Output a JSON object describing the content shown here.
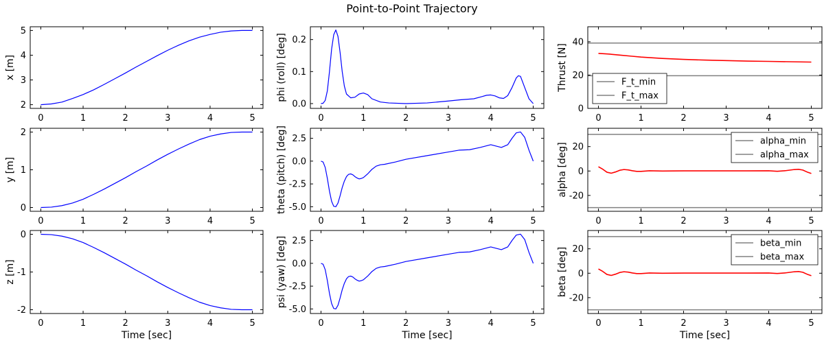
{
  "figure": {
    "title": "Point-to-Point Trajectory"
  },
  "chart_data": [
    {
      "type": "line",
      "panel": "x",
      "ylabel": "x [m]",
      "xlabel": "",
      "xlim": [
        -0.25,
        5.25
      ],
      "ylim": [
        1.85,
        5.15
      ],
      "xticks": [
        0,
        1,
        2,
        3,
        4,
        5
      ],
      "yticks": [
        2,
        3,
        4,
        5
      ],
      "xticklabels": [
        "0",
        "1",
        "2",
        "3",
        "4",
        "5"
      ],
      "yticklabels": [
        "2",
        "3",
        "4",
        "5"
      ],
      "series": [
        {
          "color": "#0000ff",
          "x": [
            0,
            0.25,
            0.5,
            0.75,
            1,
            1.25,
            1.5,
            1.75,
            2,
            2.25,
            2.5,
            2.75,
            3,
            3.25,
            3.5,
            3.75,
            4,
            4.25,
            4.5,
            4.75,
            5
          ],
          "y": [
            2.0,
            2.03,
            2.105,
            2.25,
            2.41,
            2.6,
            2.82,
            3.05,
            3.28,
            3.52,
            3.75,
            3.98,
            4.2,
            4.4,
            4.58,
            4.73,
            4.84,
            4.93,
            4.98,
            5.0,
            5.0
          ]
        }
      ]
    },
    {
      "type": "line",
      "panel": "y",
      "ylabel": "y [m]",
      "xlabel": "",
      "xlim": [
        -0.25,
        5.25
      ],
      "ylim": [
        -0.1,
        2.1
      ],
      "xticks": [
        0,
        1,
        2,
        3,
        4,
        5
      ],
      "yticks": [
        0,
        1,
        2
      ],
      "xticklabels": [
        "0",
        "1",
        "2",
        "3",
        "4",
        "5"
      ],
      "yticklabels": [
        "0",
        "1",
        "2"
      ],
      "series": [
        {
          "color": "#0000ff",
          "x": [
            0,
            0.25,
            0.5,
            0.75,
            1,
            1.25,
            1.5,
            1.75,
            2,
            2.25,
            2.5,
            2.75,
            3,
            3.25,
            3.5,
            3.75,
            4,
            4.25,
            4.5,
            4.75,
            5
          ],
          "y": [
            0.0,
            0.01,
            0.05,
            0.12,
            0.22,
            0.35,
            0.49,
            0.64,
            0.79,
            0.95,
            1.1,
            1.26,
            1.41,
            1.55,
            1.68,
            1.8,
            1.89,
            1.95,
            1.99,
            2.0,
            2.0
          ]
        }
      ]
    },
    {
      "type": "line",
      "panel": "z",
      "ylabel": "z [m]",
      "xlabel": "Time [sec]",
      "xlim": [
        -0.25,
        5.25
      ],
      "ylim": [
        -2.1,
        0.1
      ],
      "xticks": [
        0,
        1,
        2,
        3,
        4,
        5
      ],
      "yticks": [
        0,
        -1,
        -2
      ],
      "xticklabels": [
        "0",
        "1",
        "2",
        "3",
        "4",
        "5"
      ],
      "yticklabels": [
        "0",
        "-1",
        "-2"
      ],
      "series": [
        {
          "color": "#0000ff",
          "x": [
            0,
            0.25,
            0.5,
            0.75,
            1,
            1.25,
            1.5,
            1.75,
            2,
            2.25,
            2.5,
            2.75,
            3,
            3.25,
            3.5,
            3.75,
            4,
            4.25,
            4.5,
            4.75,
            5
          ],
          "y": [
            0.0,
            -0.01,
            -0.05,
            -0.12,
            -0.22,
            -0.35,
            -0.49,
            -0.64,
            -0.79,
            -0.95,
            -1.1,
            -1.26,
            -1.41,
            -1.55,
            -1.68,
            -1.8,
            -1.89,
            -1.95,
            -1.99,
            -2.0,
            -2.0
          ]
        }
      ]
    },
    {
      "type": "line",
      "panel": "phi",
      "ylabel": "phi (roll) [deg]",
      "xlabel": "",
      "xlim": [
        -0.25,
        5.25
      ],
      "ylim": [
        -0.015,
        0.24
      ],
      "xticks": [
        0,
        1,
        2,
        3,
        4,
        5
      ],
      "yticks": [
        0.0,
        0.1,
        0.2
      ],
      "xticklabels": [
        "0",
        "1",
        "2",
        "3",
        "4",
        "5"
      ],
      "yticklabels": [
        "0.0",
        "0.1",
        "0.2"
      ],
      "series": [
        {
          "color": "#0000ff",
          "x": [
            0,
            0.05,
            0.1,
            0.15,
            0.2,
            0.25,
            0.3,
            0.35,
            0.4,
            0.45,
            0.5,
            0.55,
            0.6,
            0.7,
            0.8,
            0.9,
            1.0,
            1.1,
            1.2,
            1.4,
            1.6,
            2.0,
            2.5,
            3.0,
            3.3,
            3.6,
            3.8,
            3.9,
            4.0,
            4.1,
            4.2,
            4.3,
            4.4,
            4.5,
            4.6,
            4.65,
            4.7,
            4.8,
            4.9,
            5.0
          ],
          "y": [
            0.0,
            0.001,
            0.01,
            0.04,
            0.1,
            0.17,
            0.215,
            0.23,
            0.21,
            0.16,
            0.1,
            0.055,
            0.03,
            0.018,
            0.02,
            0.03,
            0.033,
            0.028,
            0.015,
            0.005,
            0.002,
            0.0,
            0.002,
            0.008,
            0.012,
            0.015,
            0.022,
            0.026,
            0.027,
            0.024,
            0.018,
            0.016,
            0.025,
            0.05,
            0.08,
            0.087,
            0.085,
            0.05,
            0.015,
            0.0
          ]
        }
      ]
    },
    {
      "type": "line",
      "panel": "theta",
      "ylabel": "theta (pitch) [deg]",
      "xlabel": "",
      "xlim": [
        -0.25,
        5.25
      ],
      "ylim": [
        -5.5,
        3.6
      ],
      "xticks": [
        0,
        1,
        2,
        3,
        4,
        5
      ],
      "yticks": [
        -5.0,
        -2.5,
        0.0,
        2.5
      ],
      "xticklabels": [
        "0",
        "1",
        "2",
        "3",
        "4",
        "5"
      ],
      "yticklabels": [
        "-5.0",
        "-2.5",
        "0.0",
        "2.5"
      ],
      "series": [
        {
          "color": "#0000ff",
          "x": [
            0,
            0.05,
            0.1,
            0.15,
            0.2,
            0.25,
            0.3,
            0.35,
            0.4,
            0.45,
            0.5,
            0.55,
            0.6,
            0.65,
            0.7,
            0.75,
            0.8,
            0.85,
            0.9,
            0.95,
            1.0,
            1.1,
            1.2,
            1.3,
            1.4,
            1.5,
            1.75,
            2.0,
            2.5,
            3.0,
            3.25,
            3.5,
            3.75,
            4.0,
            4.25,
            4.4,
            4.5,
            4.6,
            4.7,
            4.8,
            4.9,
            5.0
          ],
          "y": [
            0.0,
            -0.1,
            -0.7,
            -1.9,
            -3.3,
            -4.4,
            -4.95,
            -5.0,
            -4.6,
            -3.8,
            -2.9,
            -2.2,
            -1.7,
            -1.45,
            -1.4,
            -1.5,
            -1.7,
            -1.85,
            -1.95,
            -1.9,
            -1.8,
            -1.4,
            -0.9,
            -0.55,
            -0.4,
            -0.35,
            -0.1,
            0.2,
            0.6,
            1.0,
            1.2,
            1.25,
            1.5,
            1.8,
            1.5,
            1.8,
            2.5,
            3.1,
            3.2,
            2.6,
            1.2,
            0.0
          ]
        }
      ]
    },
    {
      "type": "line",
      "panel": "psi",
      "ylabel": "psi (yaw) [deg]",
      "xlabel": "Time [sec]",
      "xlim": [
        -0.25,
        5.25
      ],
      "ylim": [
        -5.5,
        3.6
      ],
      "xticks": [
        0,
        1,
        2,
        3,
        4,
        5
      ],
      "yticks": [
        -5.0,
        -2.5,
        0.0,
        2.5
      ],
      "xticklabels": [
        "0",
        "1",
        "2",
        "3",
        "4",
        "5"
      ],
      "yticklabels": [
        "-5.0",
        "-2.5",
        "0.0",
        "2.5"
      ],
      "series": [
        {
          "color": "#0000ff",
          "x": [
            0,
            0.05,
            0.1,
            0.15,
            0.2,
            0.25,
            0.3,
            0.35,
            0.4,
            0.45,
            0.5,
            0.55,
            0.6,
            0.65,
            0.7,
            0.75,
            0.8,
            0.85,
            0.9,
            0.95,
            1.0,
            1.1,
            1.2,
            1.3,
            1.4,
            1.5,
            1.75,
            2.0,
            2.5,
            3.0,
            3.25,
            3.5,
            3.75,
            4.0,
            4.25,
            4.4,
            4.5,
            4.6,
            4.7,
            4.8,
            4.9,
            5.0
          ],
          "y": [
            0.0,
            -0.1,
            -0.7,
            -1.9,
            -3.3,
            -4.4,
            -4.95,
            -5.0,
            -4.6,
            -3.8,
            -2.9,
            -2.2,
            -1.7,
            -1.45,
            -1.4,
            -1.5,
            -1.7,
            -1.85,
            -1.95,
            -1.9,
            -1.8,
            -1.4,
            -0.9,
            -0.55,
            -0.4,
            -0.35,
            -0.1,
            0.2,
            0.6,
            1.0,
            1.2,
            1.25,
            1.5,
            1.8,
            1.5,
            1.8,
            2.5,
            3.1,
            3.2,
            2.6,
            1.2,
            0.0
          ]
        }
      ]
    },
    {
      "type": "line",
      "panel": "thrust",
      "ylabel": "Thrust [N]",
      "xlabel": "",
      "xlim": [
        -0.25,
        5.25
      ],
      "ylim": [
        0,
        49
      ],
      "xticks": [
        0,
        1,
        2,
        3,
        4,
        5
      ],
      "yticks": [
        0,
        20,
        40
      ],
      "xticklabels": [
        "0",
        "1",
        "2",
        "3",
        "4",
        "5"
      ],
      "yticklabels": [
        "0",
        "20",
        "40"
      ],
      "hlines": [
        {
          "name": "F_t_min",
          "y": 19.6,
          "color": "#808080"
        },
        {
          "name": "F_t_max",
          "y": 39.2,
          "color": "#808080"
        }
      ],
      "legend": "lower-left",
      "series": [
        {
          "color": "#ff0000",
          "x": [
            0,
            0.25,
            0.5,
            0.75,
            1,
            1.5,
            2,
            2.5,
            3,
            3.5,
            4,
            4.5,
            5
          ],
          "y": [
            33.0,
            32.6,
            32.0,
            31.4,
            30.8,
            30.0,
            29.4,
            29.0,
            28.7,
            28.4,
            28.2,
            28.0,
            27.8
          ]
        }
      ]
    },
    {
      "type": "line",
      "panel": "alpha",
      "ylabel": "alpha [deg]",
      "xlabel": "",
      "xlim": [
        -0.25,
        5.25
      ],
      "ylim": [
        -33,
        35
      ],
      "xticks": [
        0,
        1,
        2,
        3,
        4,
        5
      ],
      "yticks": [
        -20,
        0,
        20
      ],
      "xticklabels": [
        "0",
        "1",
        "2",
        "3",
        "4",
        "5"
      ],
      "yticklabels": [
        "-20",
        "0",
        "20"
      ],
      "hlines": [
        {
          "name": "alpha_min",
          "y": -30,
          "color": "#808080"
        },
        {
          "name": "alpha_max",
          "y": 30,
          "color": "#808080"
        }
      ],
      "legend": "upper-right",
      "series": [
        {
          "color": "#ff0000",
          "x": [
            0,
            0.1,
            0.2,
            0.3,
            0.4,
            0.5,
            0.6,
            0.7,
            0.8,
            0.9,
            1.0,
            1.2,
            1.5,
            2.0,
            2.5,
            3.0,
            3.5,
            4.0,
            4.2,
            4.4,
            4.6,
            4.7,
            4.8,
            4.9,
            5.0
          ],
          "y": [
            3.5,
            1.5,
            -1.0,
            -1.8,
            -0.8,
            0.6,
            1.2,
            0.9,
            0.2,
            -0.3,
            -0.3,
            0.2,
            0.0,
            0.1,
            0.1,
            0.1,
            0.1,
            0.2,
            -0.2,
            0.3,
            1.2,
            1.4,
            0.8,
            -0.8,
            -2.0
          ]
        }
      ]
    },
    {
      "type": "line",
      "panel": "beta",
      "ylabel": "beta [deg]",
      "xlabel": "Time [sec]",
      "xlim": [
        -0.25,
        5.25
      ],
      "ylim": [
        -33,
        35
      ],
      "xticks": [
        0,
        1,
        2,
        3,
        4,
        5
      ],
      "yticks": [
        -20,
        0,
        20
      ],
      "xticklabels": [
        "0",
        "1",
        "2",
        "3",
        "4",
        "5"
      ],
      "yticklabels": [
        "-20",
        "0",
        "20"
      ],
      "hlines": [
        {
          "name": "beta_min",
          "y": -30,
          "color": "#808080"
        },
        {
          "name": "beta_max",
          "y": 30,
          "color": "#808080"
        }
      ],
      "legend": "upper-right",
      "series": [
        {
          "color": "#ff0000",
          "x": [
            0,
            0.1,
            0.2,
            0.3,
            0.4,
            0.5,
            0.6,
            0.7,
            0.8,
            0.9,
            1.0,
            1.2,
            1.5,
            2.0,
            2.5,
            3.0,
            3.5,
            4.0,
            4.2,
            4.4,
            4.6,
            4.7,
            4.8,
            4.9,
            5.0
          ],
          "y": [
            3.5,
            1.5,
            -1.0,
            -1.8,
            -0.8,
            0.6,
            1.2,
            0.9,
            0.2,
            -0.3,
            -0.3,
            0.2,
            0.0,
            0.1,
            0.1,
            0.1,
            0.1,
            0.2,
            -0.2,
            0.3,
            1.2,
            1.4,
            0.8,
            -0.8,
            -2.0
          ]
        }
      ]
    }
  ]
}
